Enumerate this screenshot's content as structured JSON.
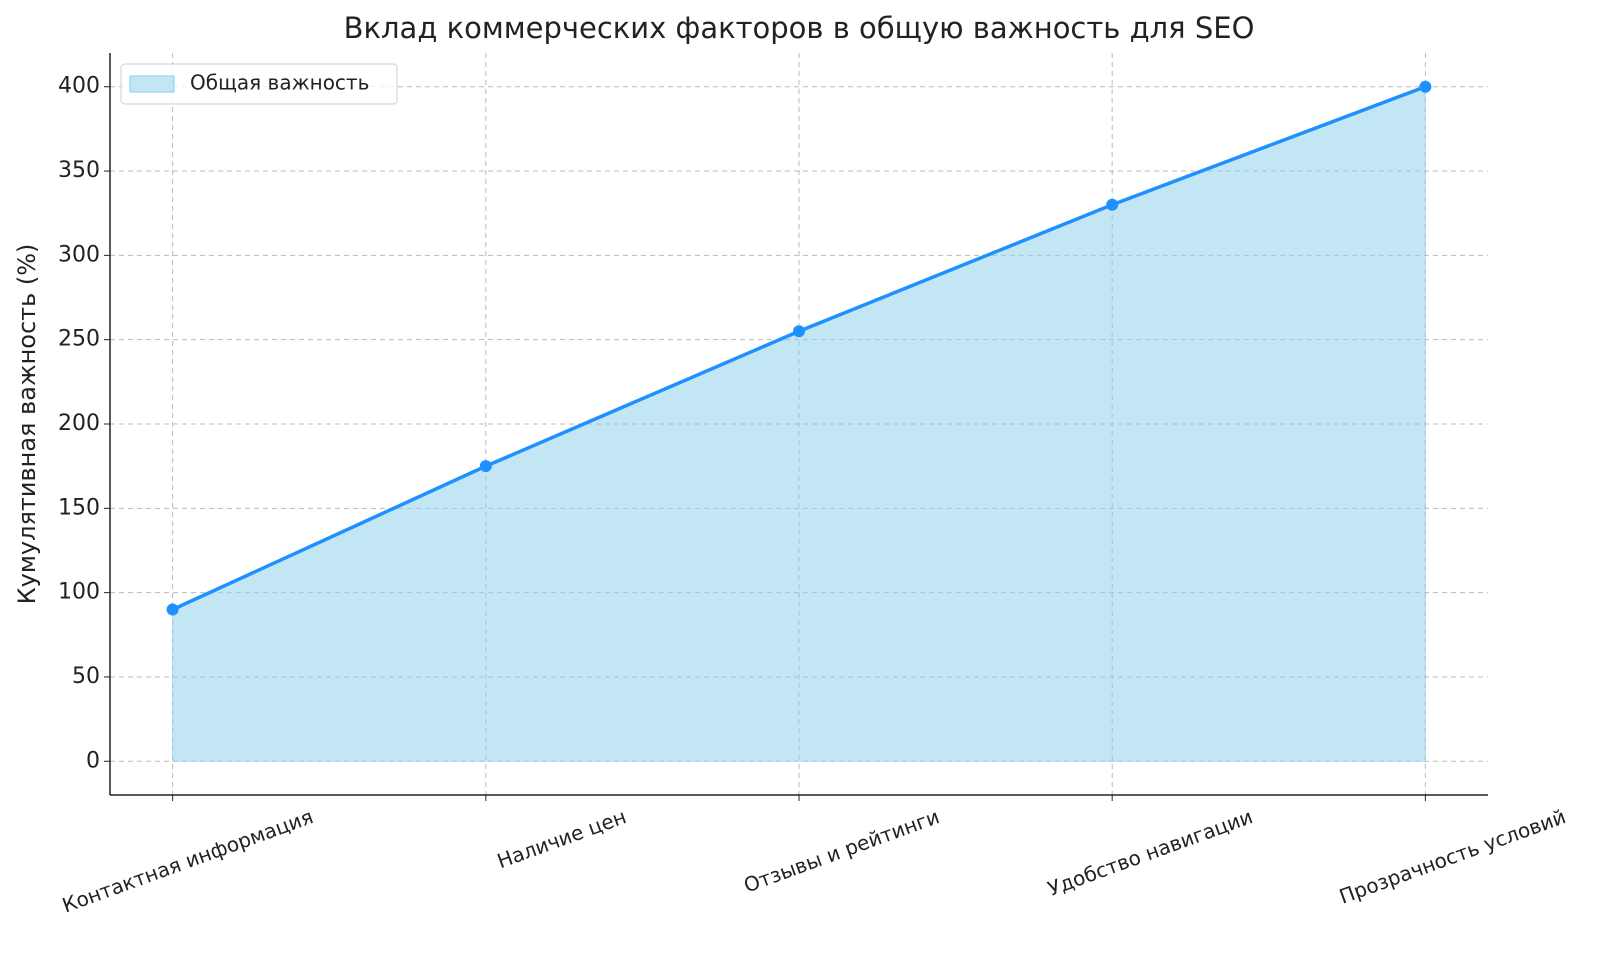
{
  "chart_data": {
    "type": "area",
    "title": "Вклад коммерческих факторов в общую важность для SEO",
    "y_label": "Кумулятивная важность (%)",
    "categories": [
      "Контактная информация",
      "Наличие цен",
      "Отзывы и рейтинги",
      "Удобство навигации",
      "Прозрачность условий"
    ],
    "series": [
      {
        "name": "Общая важность",
        "color": "#1e90ff",
        "fill_color": "#87ceeb",
        "values": [
          90,
          175,
          255,
          330,
          400
        ]
      }
    ],
    "ylim": [
      -20,
      420
    ],
    "yticks": [
      0,
      50,
      100,
      150,
      200,
      250,
      300,
      350,
      400
    ],
    "grid": true,
    "legend": "upper left"
  }
}
